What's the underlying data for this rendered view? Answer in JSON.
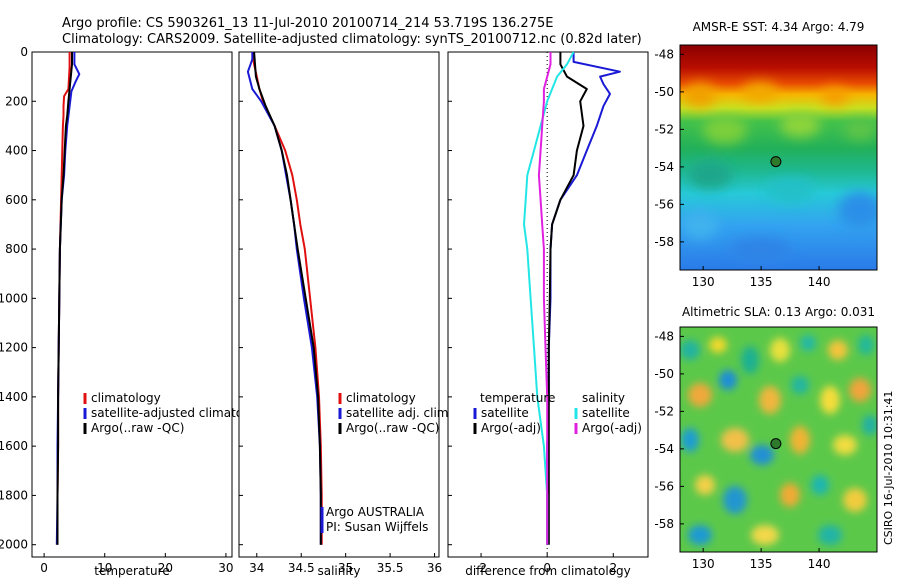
{
  "header": {
    "line1": "Argo profile: CS 5903261_13 11-Jul-2010 20100714_214 53.719S 136.275E",
    "line2": "Climatology: CARS2009. Satellite-adjusted climatology: synTS_20100712.nc (0.82d later)"
  },
  "credit": "CSIRO 16-Jul-2010 10:31:41",
  "colors": {
    "red": "#e01010",
    "blue": "#1a1ad6",
    "black": "#000000",
    "cyan": "#22e6e6",
    "magenta": "#e020e0",
    "marker": "#2d7a2d"
  },
  "chart_data": [
    {
      "type": "line",
      "xlabel": "temperature",
      "ylim": [
        2050,
        0
      ],
      "xlim": [
        -2,
        31
      ],
      "xticks": [
        "0",
        "10",
        "20",
        "30"
      ],
      "yticks": [
        "0",
        "200",
        "400",
        "600",
        "800",
        "1000",
        "1200",
        "1400",
        "1600",
        "1800",
        "2000"
      ],
      "legend": [
        "climatology",
        "satellite-adjusted climatology",
        "Argo(..raw -QC)"
      ],
      "series": [
        {
          "name": "climatology",
          "color": "red",
          "depth": [
            0,
            60,
            150,
            180,
            220,
            260,
            300,
            400,
            500,
            600,
            800,
            1000,
            1200,
            1400,
            1600,
            1800,
            2000
          ],
          "values": [
            4.2,
            4.2,
            4.0,
            3.3,
            3.2,
            3.2,
            3.1,
            3.0,
            2.9,
            2.8,
            2.6,
            2.5,
            2.4,
            2.3,
            2.3,
            2.2,
            2.2
          ]
        },
        {
          "name": "satellite-adjusted climatology",
          "color": "blue",
          "depth": [
            0,
            50,
            90,
            120,
            160,
            220,
            300,
            400,
            500,
            600,
            800,
            1000,
            1200,
            1400,
            1600,
            1800,
            2000
          ],
          "values": [
            5.0,
            5.0,
            5.8,
            5.2,
            4.5,
            4.2,
            3.8,
            3.5,
            3.3,
            2.9,
            2.6,
            2.5,
            2.4,
            2.3,
            2.2,
            2.2,
            2.1
          ]
        },
        {
          "name": "Argo(..raw -QC)",
          "color": "black",
          "depth": [
            0,
            50,
            100,
            150,
            200,
            260,
            300,
            400,
            500,
            600,
            800,
            1000,
            1200,
            1400,
            1600,
            1800,
            2000
          ],
          "values": [
            4.6,
            4.6,
            4.4,
            4.2,
            4.0,
            3.8,
            3.6,
            3.4,
            3.2,
            2.9,
            2.6,
            2.5,
            2.4,
            2.3,
            2.3,
            2.2,
            2.2
          ]
        }
      ]
    },
    {
      "type": "line",
      "xlabel": "salinity",
      "ylim": [
        2050,
        0
      ],
      "xlim": [
        33.8,
        36.05
      ],
      "xticks": [
        "34",
        "34.5",
        "35",
        "35.5",
        "36"
      ],
      "legend": [
        "climatology",
        "satellite adj. clim.",
        "Argo(..raw -QC)"
      ],
      "annotation": [
        "Argo AUSTRALIA",
        "PI: Susan Wijffels"
      ],
      "series": [
        {
          "name": "climatology",
          "color": "red",
          "depth": [
            0,
            50,
            100,
            150,
            200,
            300,
            400,
            500,
            600,
            700,
            800,
            1000,
            1200,
            1400,
            1600,
            1800,
            2000
          ],
          "values": [
            33.95,
            33.97,
            34.0,
            34.03,
            34.07,
            34.2,
            34.32,
            34.4,
            34.45,
            34.49,
            34.54,
            34.6,
            34.66,
            34.7,
            34.72,
            34.73,
            34.73
          ]
        },
        {
          "name": "satellite adj. clim.",
          "color": "blue",
          "depth": [
            0,
            30,
            80,
            150,
            200,
            300,
            400,
            500,
            600,
            700,
            800,
            1000,
            1200,
            1400,
            1600,
            1800,
            2000
          ],
          "values": [
            33.95,
            33.95,
            33.9,
            33.95,
            34.05,
            34.2,
            34.28,
            34.33,
            34.38,
            34.42,
            34.45,
            34.53,
            34.62,
            34.68,
            34.71,
            34.72,
            34.72
          ]
        },
        {
          "name": "Argo(..raw -QC)",
          "color": "black",
          "depth": [
            0,
            100,
            150,
            220,
            300,
            400,
            500,
            600,
            700,
            800,
            1000,
            1200,
            1400,
            1600,
            1800,
            2000
          ],
          "values": [
            33.97,
            33.99,
            34.03,
            34.1,
            34.2,
            34.28,
            34.34,
            34.38,
            34.42,
            34.46,
            34.55,
            34.64,
            34.69,
            34.71,
            34.72,
            34.72
          ]
        }
      ]
    },
    {
      "type": "line",
      "xlabel": "difference from climatology",
      "ylim": [
        2050,
        0
      ],
      "xlim": [
        -3,
        3.05
      ],
      "xticks": [
        "-2",
        "0",
        "2"
      ],
      "legend_temperature_title": "temperature",
      "legend_salinity_title": "salinity",
      "legend": [
        "satellite",
        "Argo(-adj)",
        "satellite",
        "Argo(-adj)"
      ],
      "series": [
        {
          "name": "temperature satellite",
          "color": "blue",
          "depth": [
            0,
            40,
            80,
            100,
            130,
            170,
            220,
            300,
            400,
            500,
            600,
            700,
            800,
            1000,
            1200,
            1400,
            1600,
            1800,
            2000
          ],
          "values": [
            0.8,
            0.8,
            2.2,
            1.6,
            1.7,
            1.9,
            1.7,
            1.5,
            1.2,
            0.9,
            0.4,
            0.15,
            0.1,
            0.1,
            0.05,
            0.05,
            0.0,
            0.0,
            0.0
          ]
        },
        {
          "name": "temperature Argo(-adj)",
          "color": "black",
          "depth": [
            0,
            50,
            100,
            150,
            200,
            300,
            400,
            500,
            600,
            700,
            800,
            1000,
            1200,
            1400,
            1600,
            1800,
            2000
          ],
          "values": [
            0.4,
            0.4,
            0.6,
            1.2,
            1.0,
            1.1,
            0.9,
            0.8,
            0.4,
            0.15,
            0.1,
            0.08,
            0.05,
            0.05,
            0.05,
            0.05,
            0.05
          ]
        },
        {
          "name": "salinity satellite",
          "color": "cyan",
          "depth": [
            0,
            50,
            100,
            150,
            200,
            300,
            400,
            500,
            600,
            700,
            800,
            1000,
            1200,
            1400,
            1600,
            1800,
            2000
          ],
          "values": [
            0.8,
            0.6,
            0.3,
            0.15,
            0.0,
            -0.2,
            -0.4,
            -0.6,
            -0.65,
            -0.7,
            -0.6,
            -0.5,
            -0.4,
            -0.3,
            -0.1,
            0.0,
            0.0
          ]
        },
        {
          "name": "salinity Argo(-adj)",
          "color": "magenta",
          "depth": [
            0,
            50,
            100,
            150,
            200,
            300,
            400,
            500,
            600,
            700,
            800,
            1000,
            1200,
            1400,
            1600,
            1800,
            2000
          ],
          "values": [
            0.1,
            0.1,
            0.0,
            -0.1,
            -0.1,
            -0.15,
            -0.2,
            -0.25,
            -0.2,
            -0.15,
            -0.1,
            -0.1,
            -0.05,
            0.0,
            0.0,
            0.0,
            0.0
          ]
        }
      ]
    },
    {
      "type": "heatmap",
      "title": "AMSR-E SST: 4.34 Argo: 4.79",
      "xlim": [
        128,
        145
      ],
      "ylim": [
        -59.5,
        -47.5
      ],
      "xticks": [
        "130",
        "135",
        "140"
      ],
      "yticks": [
        "-48",
        "-50",
        "-52",
        "-54",
        "-56",
        "-58"
      ],
      "marker": {
        "lon": 136.275,
        "lat": -53.719
      }
    },
    {
      "type": "heatmap",
      "title": "Altimetric SLA: 0.13 Argo: 0.031",
      "xlim": [
        128,
        145
      ],
      "ylim": [
        -59.5,
        -47.5
      ],
      "xticks": [
        "130",
        "135",
        "140"
      ],
      "yticks": [
        "-48",
        "-50",
        "-52",
        "-54",
        "-56",
        "-58"
      ],
      "marker": {
        "lon": 136.275,
        "lat": -53.719
      }
    }
  ]
}
